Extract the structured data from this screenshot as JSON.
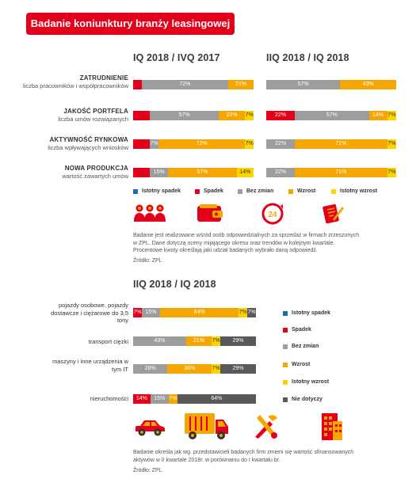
{
  "header": {
    "title": "Badanie koniunktury branży leasingowej"
  },
  "colors": {
    "istotny_spadek": "#1b6fa8",
    "spadek": "#e3001b",
    "bez_zmian": "#9d9d9d",
    "wzrost": "#f5a600",
    "istotny_wzrost": "#fcd400",
    "nie_dotyczy": "#595959"
  },
  "legend": {
    "istotny_spadek": "Istotny spadek",
    "spadek": "Spadek",
    "bez_zmian": "Bez zmian",
    "wzrost": "Wzrost",
    "istotny_wzrost": "Istotny wzrost",
    "nie_dotyczy": "Nie dotyczy"
  },
  "section1": {
    "rows": [
      {
        "main": "ZATRUDNIENIE",
        "sub": "liczba pracowników i współpracowników"
      },
      {
        "main": "JAKOŚĆ PORTFELA",
        "sub": "liczba umów rozwiązanych"
      },
      {
        "main": "AKTYWNOŚĆ RYNKOWA",
        "sub": "liczba wpływających wniosków"
      },
      {
        "main": "NOWA PRODUKCJA",
        "sub": "wartość zawartych umów"
      }
    ],
    "note": "Badanie jest realizowane wśród osób odpowiedzialnych za sprzedaż w firmach zrzeszonych w ZPL. Dane dotyczą oceny mijającego okresu oraz trendów w kolejnym kwartale. Procentowe kwoty określają jaki udział badanych wybrało daną odpowiedź.",
    "source": "Źródło: ZPL",
    "icon_names": [
      "people-icon",
      "wallet-icon",
      "clock-24-icon",
      "contract-icon"
    ]
  },
  "section2": {
    "note": "Badanie określa jak wg. przedstawicieli badanych firm zmieni się wartość sfinansowanych aktywów w II kwartale 2018r. w porównaniu do I kwartału br.",
    "source": "Źródło: ZPL",
    "icon_names": [
      "car-icon",
      "truck-icon",
      "tools-icon",
      "building-icon"
    ]
  },
  "chart_data": [
    {
      "type": "bar",
      "stacked": true,
      "orientation": "horizontal",
      "title": "IQ 2018 / IVQ 2017",
      "categories": [
        "ZATRUDNIENIE",
        "JAKOŚĆ PORTFELA",
        "AKTYWNOŚĆ RYNKOWA",
        "NOWA PRODUKCJA"
      ],
      "series": [
        {
          "name": "Istotny spadek",
          "key": "istotny_spadek",
          "values": [
            0,
            0,
            0,
            0
          ]
        },
        {
          "name": "Spadek",
          "key": "spadek",
          "values": [
            7,
            14,
            14,
            14
          ]
        },
        {
          "name": "Bez zmian",
          "key": "bez_zmian",
          "values": [
            72,
            57,
            7,
            15
          ]
        },
        {
          "name": "Wzrost",
          "key": "wzrost",
          "values": [
            21,
            22,
            72,
            57
          ]
        },
        {
          "name": "Istotny wzrost",
          "key": "istotny_wzrost",
          "values": [
            0,
            7,
            7,
            14
          ]
        }
      ],
      "labels": [
        [
          "7%",
          "",
          "72%",
          "21%",
          ""
        ],
        [
          "14%",
          "",
          "57%",
          "22%",
          "7%"
        ],
        [
          "14%",
          "",
          "7%",
          "72%",
          "7%"
        ],
        [
          "14%",
          "",
          "15%",
          "57%",
          "14%"
        ]
      ],
      "xlim": [
        0,
        100
      ]
    },
    {
      "type": "bar",
      "stacked": true,
      "orientation": "horizontal",
      "title": "IIQ 2018 / IQ 2018",
      "categories": [
        "ZATRUDNIENIE",
        "JAKOŚĆ PORTFELA",
        "AKTYWNOŚĆ RYNKOWA",
        "NOWA PRODUKCJA"
      ],
      "series": [
        {
          "name": "Istotny spadek",
          "key": "istotny_spadek",
          "values": [
            0,
            0,
            0,
            0
          ]
        },
        {
          "name": "Spadek",
          "key": "spadek",
          "values": [
            0,
            22,
            0,
            0
          ]
        },
        {
          "name": "Bez zmian",
          "key": "bez_zmian",
          "values": [
            57,
            57,
            22,
            22
          ]
        },
        {
          "name": "Wzrost",
          "key": "wzrost",
          "values": [
            43,
            14,
            71,
            71
          ]
        },
        {
          "name": "Istotny wzrost",
          "key": "istotny_wzrost",
          "values": [
            0,
            7,
            7,
            7
          ]
        }
      ],
      "labels": [
        [
          "",
          "",
          "57%",
          "43%",
          ""
        ],
        [
          "",
          "22%",
          "57%",
          "14%",
          "7%"
        ],
        [
          "",
          "",
          "22%",
          "71%",
          "7%"
        ],
        [
          "",
          "",
          "22%",
          "71%",
          "7%"
        ]
      ],
      "xlim": [
        0,
        100
      ]
    },
    {
      "type": "bar",
      "stacked": true,
      "orientation": "horizontal",
      "title": "IIQ 2018 / IQ 2018",
      "categories": [
        "pojazdy osobowe, pojazdy dostawcze i ciężarowe do 3,5 tony",
        "transport ciężki",
        "maszyny i inne urządzenia w tym IT",
        "nieruchomości"
      ],
      "series": [
        {
          "name": "Istotny spadek",
          "key": "istotny_spadek",
          "values": [
            0,
            0,
            0,
            0
          ]
        },
        {
          "name": "Spadek",
          "key": "spadek",
          "values": [
            7,
            0,
            0,
            14
          ]
        },
        {
          "name": "Bez zmian",
          "key": "bez_zmian",
          "values": [
            15,
            43,
            28,
            15
          ]
        },
        {
          "name": "Wzrost",
          "key": "wzrost",
          "values": [
            64,
            21,
            36,
            7
          ]
        },
        {
          "name": "Istotny wzrost",
          "key": "istotny_wzrost",
          "values": [
            7,
            7,
            7,
            0
          ]
        },
        {
          "name": "Nie dotyczy",
          "key": "nie_dotyczy",
          "values": [
            7,
            29,
            29,
            64
          ]
        }
      ],
      "labels": [
        [
          "",
          "7%",
          "15%",
          "64%",
          "7%",
          "7%"
        ],
        [
          "",
          "",
          "43%",
          "21%",
          "7%",
          "29%"
        ],
        [
          "",
          "",
          "28%",
          "36%",
          "7%",
          "29%"
        ],
        [
          "",
          "14%",
          "15%",
          "7%",
          "",
          "64%"
        ]
      ],
      "xlim": [
        0,
        100
      ]
    }
  ]
}
